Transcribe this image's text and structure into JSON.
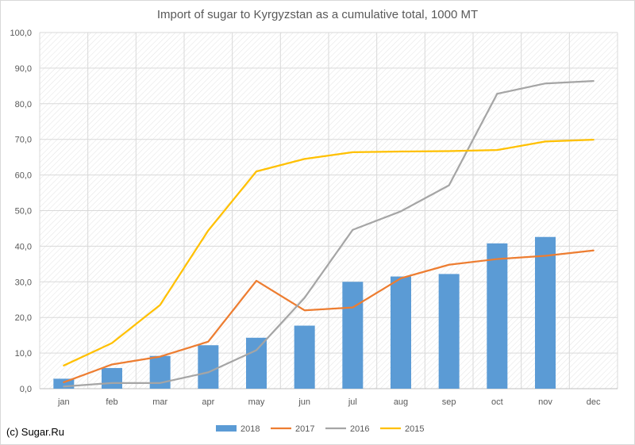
{
  "chart_data": {
    "type": "bar+line",
    "title": "Import of sugar to Kyrgyzstan as a cumulative total, 1000 MT",
    "categories": [
      "jan",
      "feb",
      "mar",
      "apr",
      "may",
      "jun",
      "jul",
      "aug",
      "sep",
      "oct",
      "nov",
      "dec"
    ],
    "ylim": [
      0,
      100
    ],
    "yticks": [
      "0,0",
      "10,0",
      "20,0",
      "30,0",
      "40,0",
      "50,0",
      "60,0",
      "70,0",
      "80,0",
      "90,0",
      "100,0"
    ],
    "grid": true,
    "legend_position": "bottom",
    "series": [
      {
        "name": "2018",
        "kind": "bar",
        "color": "#5b9bd5",
        "values": [
          2.8,
          5.8,
          9.2,
          12.2,
          14.3,
          17.7,
          30.0,
          31.5,
          32.2,
          40.8,
          42.6,
          null
        ]
      },
      {
        "name": "2017",
        "kind": "line",
        "color": "#ed7d31",
        "values": [
          1.8,
          6.8,
          9.0,
          13.2,
          30.3,
          22.0,
          22.8,
          31.0,
          34.8,
          36.4,
          37.3,
          38.8
        ]
      },
      {
        "name": "2016",
        "kind": "line",
        "color": "#a5a5a5",
        "values": [
          0.6,
          1.6,
          1.6,
          4.6,
          10.8,
          25.5,
          44.6,
          49.8,
          57.1,
          82.8,
          85.7,
          86.4
        ]
      },
      {
        "name": "2015",
        "kind": "line",
        "color": "#ffc000",
        "values": [
          6.5,
          12.8,
          23.5,
          44.4,
          61.0,
          64.5,
          66.4,
          66.6,
          66.7,
          67.0,
          69.4,
          69.9
        ]
      }
    ]
  },
  "credit": "(c) Sugar.Ru"
}
